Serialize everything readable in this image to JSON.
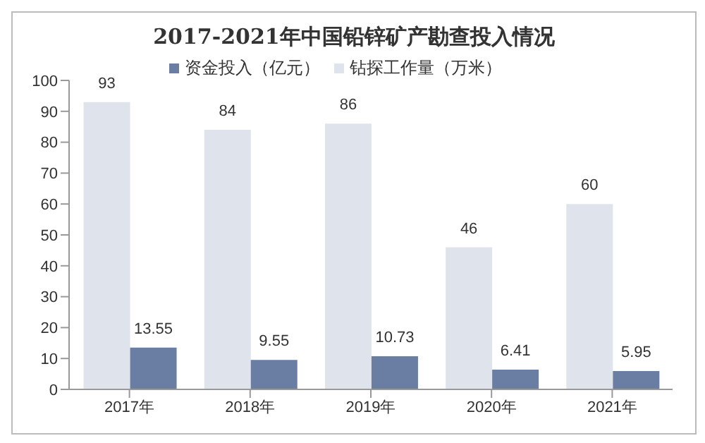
{
  "chart_data": {
    "type": "bar",
    "title": "2017-2021年中国铅锌矿产勘查投入情况",
    "categories": [
      "2017年",
      "2018年",
      "2019年",
      "2020年",
      "2021年"
    ],
    "series": [
      {
        "name": "钻探工作量（万米）",
        "color": "#dfe3ec",
        "values": [
          93,
          84,
          86,
          46,
          60
        ]
      },
      {
        "name": "资金投入（亿元）",
        "color": "#6a7ea3",
        "values": [
          13.55,
          9.55,
          10.73,
          6.41,
          5.95
        ]
      }
    ],
    "ylim": [
      0,
      100
    ],
    "yticks": [
      0,
      10,
      20,
      30,
      40,
      50,
      60,
      70,
      80,
      90,
      100
    ],
    "grid": false,
    "legend": "top",
    "data_labels": true
  }
}
